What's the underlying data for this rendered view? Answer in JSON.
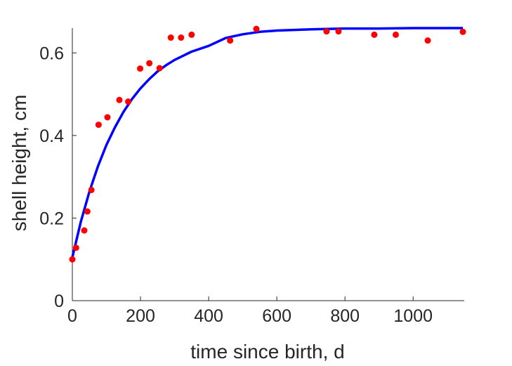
{
  "chart_data": {
    "type": "scatter",
    "xlabel": "time since birth, d",
    "ylabel": "shell height, cm",
    "xlim": [
      0,
      1150
    ],
    "ylim": [
      0,
      0.66
    ],
    "xticks": [
      0,
      200,
      400,
      600,
      800,
      1000
    ],
    "yticks": [
      0,
      0.2,
      0.4,
      0.6
    ],
    "xtick_labels": [
      "0",
      "200",
      "400",
      "600",
      "800",
      "1000"
    ],
    "ytick_labels": [
      "0",
      "0.2",
      "0.4",
      "0.6"
    ],
    "grid": false,
    "legend": "none",
    "series": [
      {
        "type": "scatter",
        "color": "#ff0000",
        "points": [
          [
            0,
            0.1
          ],
          [
            11,
            0.128
          ],
          [
            35,
            0.17
          ],
          [
            44,
            0.216
          ],
          [
            56,
            0.268
          ],
          [
            77,
            0.426
          ],
          [
            103,
            0.444
          ],
          [
            138,
            0.486
          ],
          [
            164,
            0.482
          ],
          [
            199,
            0.562
          ],
          [
            226,
            0.575
          ],
          [
            256,
            0.563
          ],
          [
            289,
            0.637
          ],
          [
            319,
            0.637
          ],
          [
            350,
            0.644
          ],
          [
            463,
            0.63
          ],
          [
            540,
            0.658
          ],
          [
            746,
            0.652
          ],
          [
            781,
            0.652
          ],
          [
            886,
            0.644
          ],
          [
            949,
            0.644
          ],
          [
            1043,
            0.63
          ],
          [
            1146,
            0.651
          ]
        ]
      },
      {
        "type": "line",
        "color": "#0000ff",
        "points": [
          [
            0,
            0.105
          ],
          [
            25,
            0.191
          ],
          [
            50,
            0.264
          ],
          [
            75,
            0.325
          ],
          [
            100,
            0.377
          ],
          [
            125,
            0.42
          ],
          [
            150,
            0.457
          ],
          [
            175,
            0.488
          ],
          [
            200,
            0.514
          ],
          [
            225,
            0.536
          ],
          [
            250,
            0.555
          ],
          [
            275,
            0.57
          ],
          [
            300,
            0.583
          ],
          [
            350,
            0.603
          ],
          [
            400,
            0.617
          ],
          [
            450,
            0.636
          ],
          [
            500,
            0.645
          ],
          [
            550,
            0.651
          ],
          [
            600,
            0.654
          ],
          [
            700,
            0.657
          ],
          [
            800,
            0.659
          ],
          [
            900,
            0.659
          ],
          [
            1000,
            0.66
          ],
          [
            1100,
            0.66
          ],
          [
            1146,
            0.66
          ]
        ]
      }
    ]
  }
}
